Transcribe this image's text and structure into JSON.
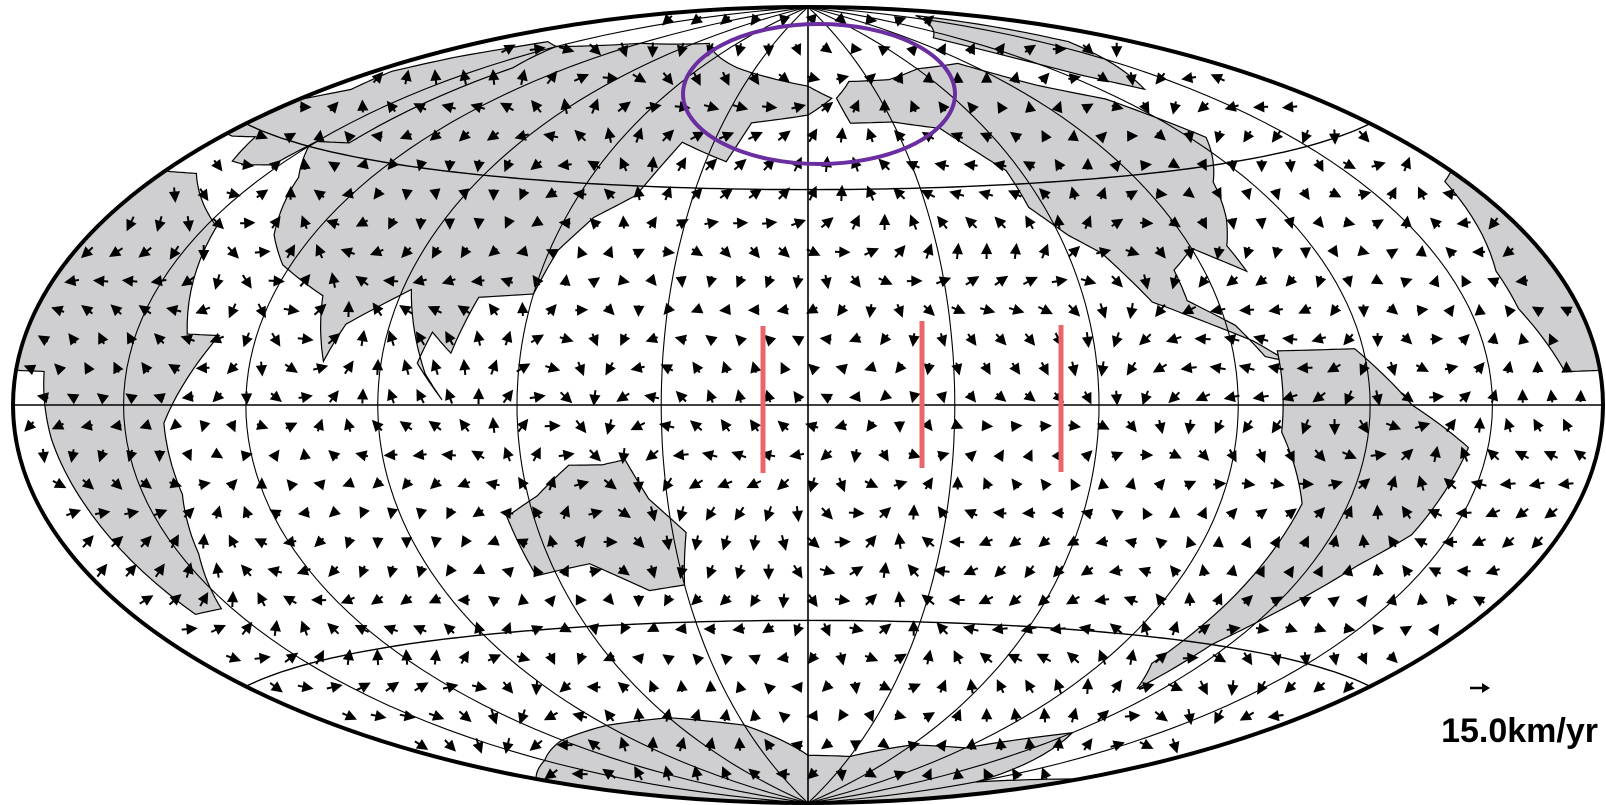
{
  "legend": {
    "label": "15.0km/yr"
  }
}
